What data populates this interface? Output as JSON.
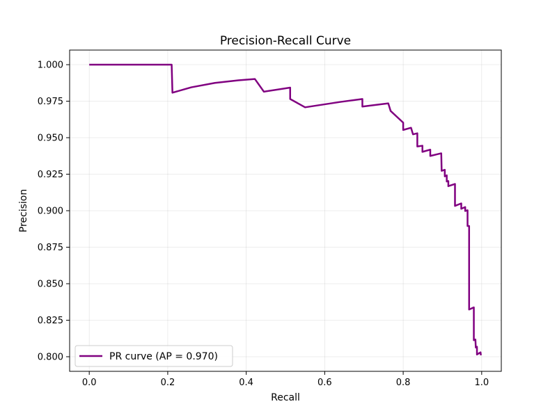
{
  "chart_data": {
    "type": "line",
    "title": "Precision-Recall Curve",
    "xlabel": "Recall",
    "ylabel": "Precision",
    "xlim": [
      -0.05,
      1.05
    ],
    "ylim": [
      0.79,
      1.01
    ],
    "x_ticks": [
      0.0,
      0.2,
      0.4,
      0.6,
      0.8,
      1.0
    ],
    "x_tick_labels": [
      "0.0",
      "0.2",
      "0.4",
      "0.6",
      "0.8",
      "1.0"
    ],
    "y_ticks": [
      0.8,
      0.825,
      0.85,
      0.875,
      0.9,
      0.925,
      0.95,
      0.975,
      1.0
    ],
    "y_tick_labels": [
      "0.800",
      "0.825",
      "0.850",
      "0.875",
      "0.900",
      "0.925",
      "0.950",
      "0.975",
      "1.000"
    ],
    "grid": true,
    "legend_position": "lower-left",
    "series": [
      {
        "name": "PR curve (AP = 0.970)",
        "color": "#800080",
        "points": [
          [
            0.0,
            1.0
          ],
          [
            0.21,
            1.0
          ],
          [
            0.212,
            0.9808
          ],
          [
            0.26,
            0.9845
          ],
          [
            0.32,
            0.9875
          ],
          [
            0.38,
            0.9893
          ],
          [
            0.422,
            0.9902
          ],
          [
            0.445,
            0.9815
          ],
          [
            0.512,
            0.9843
          ],
          [
            0.512,
            0.9765
          ],
          [
            0.55,
            0.9708
          ],
          [
            0.64,
            0.9745
          ],
          [
            0.696,
            0.9765
          ],
          [
            0.696,
            0.9713
          ],
          [
            0.762,
            0.9735
          ],
          [
            0.768,
            0.9683
          ],
          [
            0.8,
            0.9603
          ],
          [
            0.8,
            0.9553
          ],
          [
            0.82,
            0.9568
          ],
          [
            0.825,
            0.9523
          ],
          [
            0.836,
            0.953
          ],
          [
            0.836,
            0.944
          ],
          [
            0.849,
            0.9445
          ],
          [
            0.849,
            0.9403
          ],
          [
            0.869,
            0.9418
          ],
          [
            0.869,
            0.9375
          ],
          [
            0.897,
            0.9393
          ],
          [
            0.898,
            0.9273
          ],
          [
            0.906,
            0.928
          ],
          [
            0.906,
            0.9235
          ],
          [
            0.911,
            0.9242
          ],
          [
            0.911,
            0.92
          ],
          [
            0.915,
            0.9203
          ],
          [
            0.915,
            0.9168
          ],
          [
            0.932,
            0.9183
          ],
          [
            0.932,
            0.9033
          ],
          [
            0.948,
            0.905
          ],
          [
            0.948,
            0.9013
          ],
          [
            0.958,
            0.9025
          ],
          [
            0.958,
            0.8998
          ],
          [
            0.964,
            0.9003
          ],
          [
            0.964,
            0.8895
          ],
          [
            0.968,
            0.8895
          ],
          [
            0.968,
            0.8323
          ],
          [
            0.98,
            0.8338
          ],
          [
            0.98,
            0.8113
          ],
          [
            0.984,
            0.8118
          ],
          [
            0.985,
            0.8063
          ],
          [
            0.988,
            0.8068
          ],
          [
            0.988,
            0.8015
          ],
          [
            0.997,
            0.803
          ],
          [
            0.998,
            0.801
          ]
        ]
      }
    ]
  }
}
